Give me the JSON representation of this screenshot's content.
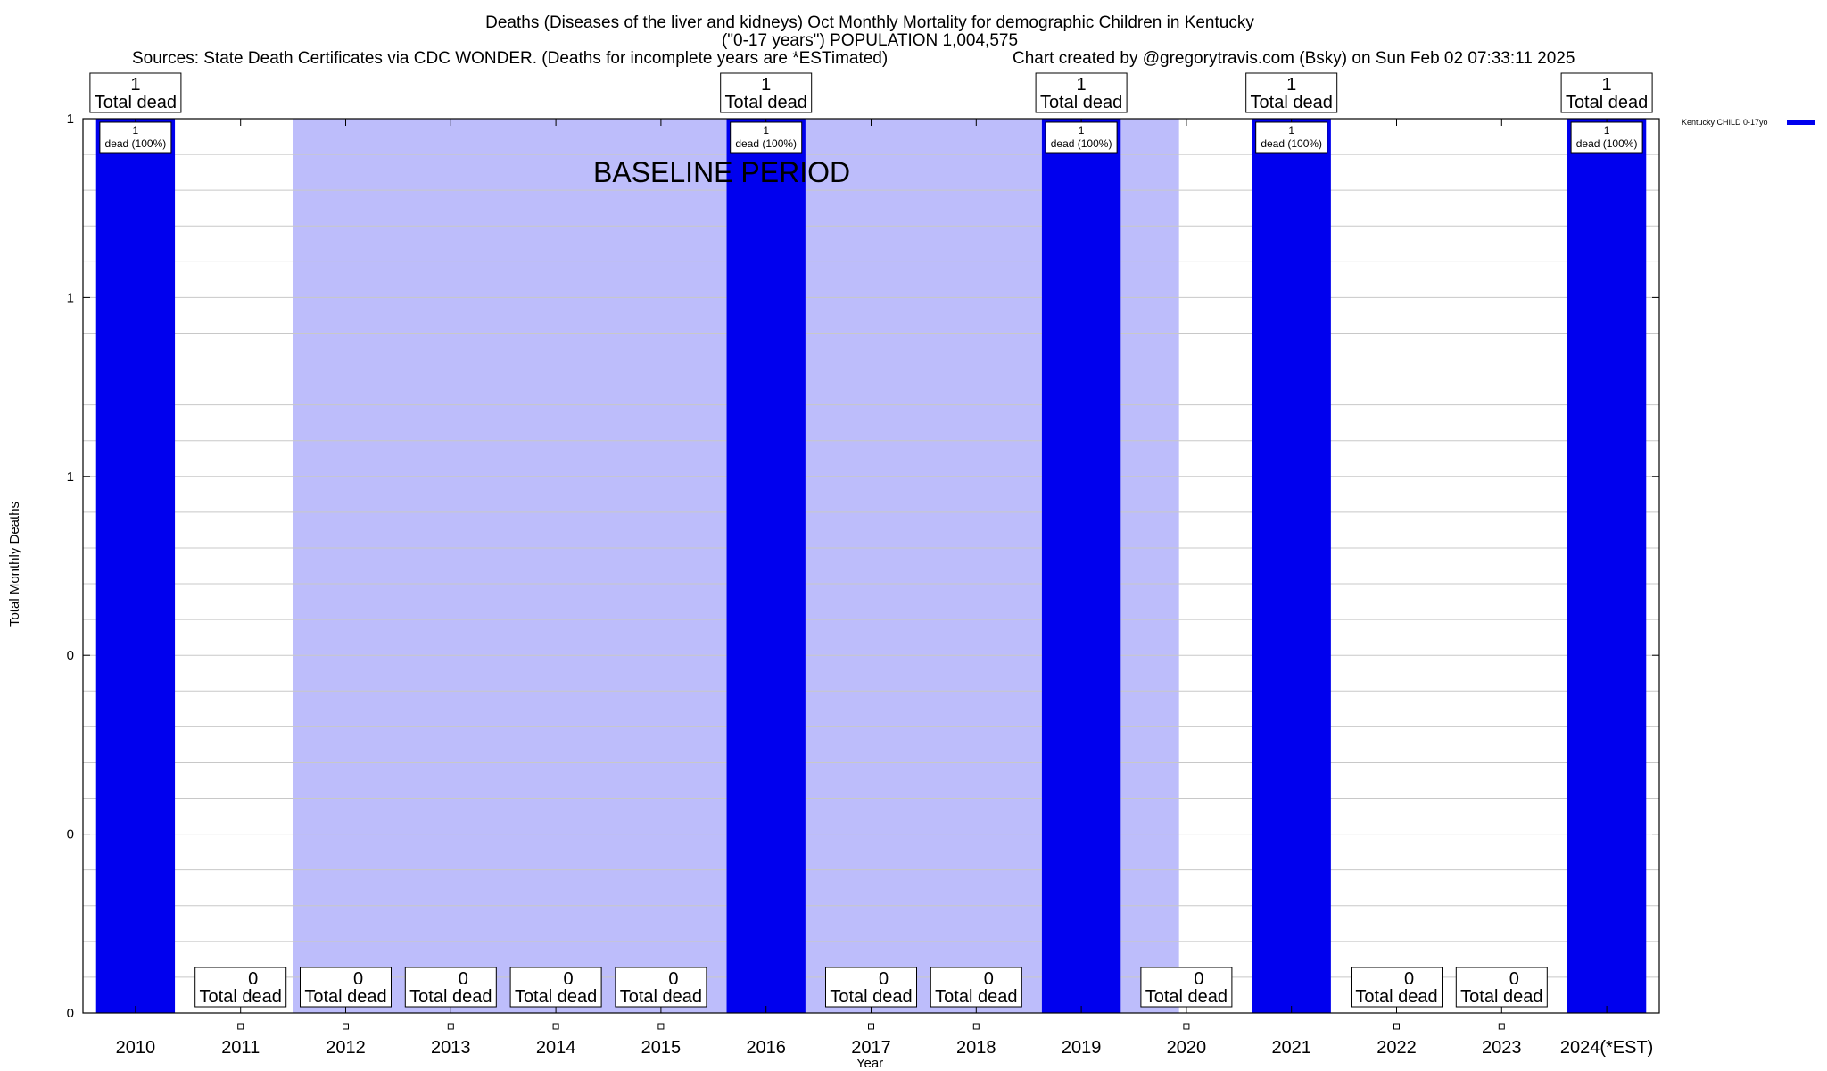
{
  "chart_data": {
    "type": "bar",
    "title_line1": "Deaths (Diseases of the liver and kidneys) Oct Monthly Mortality for demographic Children in Kentucky",
    "title_line2": "(\"0-17 years\") POPULATION 1,004,575",
    "sources": "Sources: State Death Certificates via CDC WONDER. (Deaths for incomplete years are *ESTimated)",
    "credit": "Chart created by @gregorytravis.com (Bsky) on Sun Feb 02 07:33:11 2025",
    "xlabel": "Year",
    "ylabel": "Total Monthly Deaths",
    "ylim": [
      0,
      1
    ],
    "y_tick_labels": [
      "0",
      "0",
      "0",
      "1",
      "1",
      "1"
    ],
    "grid": true,
    "legend": {
      "position": "top-right",
      "label": "Kentucky CHILD 0-17yo"
    },
    "baseline_label": "BASELINE PERIOD",
    "baseline_range": [
      "2012",
      "2019"
    ],
    "categories": [
      "2010",
      "2011",
      "2012",
      "2013",
      "2014",
      "2015",
      "2016",
      "2017",
      "2018",
      "2019",
      "2020",
      "2021",
      "2022",
      "2023",
      "2024(*EST)"
    ],
    "values": [
      1,
      0,
      0,
      0,
      0,
      0,
      1,
      0,
      0,
      1,
      0,
      1,
      0,
      0,
      1
    ],
    "total_label_suffix": "Total dead",
    "bar_label_suffix": "dead (100%)",
    "colors": {
      "bar": "#0000ee",
      "baseline": "#bdbdfb",
      "grid": "#c8c8c8",
      "frame": "#000000"
    }
  }
}
